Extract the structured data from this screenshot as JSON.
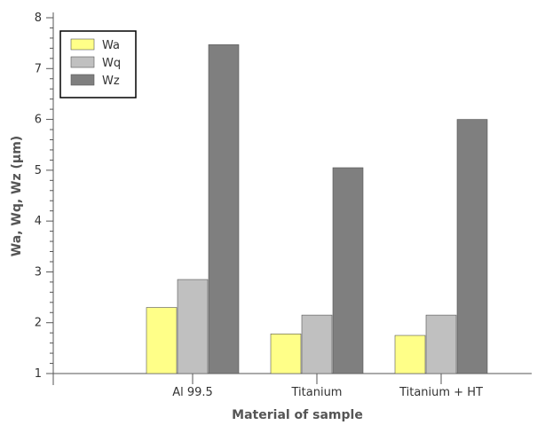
{
  "chart_data": {
    "type": "bar",
    "title": "",
    "xlabel": "Material of sample",
    "ylabel": "Wa, Wq, Wz (µm)",
    "categories": [
      "Al 99.5",
      "Titanium",
      "Titanium + HT"
    ],
    "ylim": [
      1,
      8
    ],
    "yticks": [
      1,
      2,
      3,
      4,
      5,
      6,
      7,
      8
    ],
    "grid": false,
    "legend_position": "top-left",
    "series": [
      {
        "name": "Wa",
        "color": "#ffff88",
        "values": [
          2.3,
          1.78,
          1.75
        ]
      },
      {
        "name": "Wq",
        "color": "#c0c0c0",
        "values": [
          2.85,
          2.15,
          2.15
        ]
      },
      {
        "name": "Wz",
        "color": "#7f7f7f",
        "values": [
          7.47,
          5.05,
          6.0
        ]
      }
    ]
  }
}
